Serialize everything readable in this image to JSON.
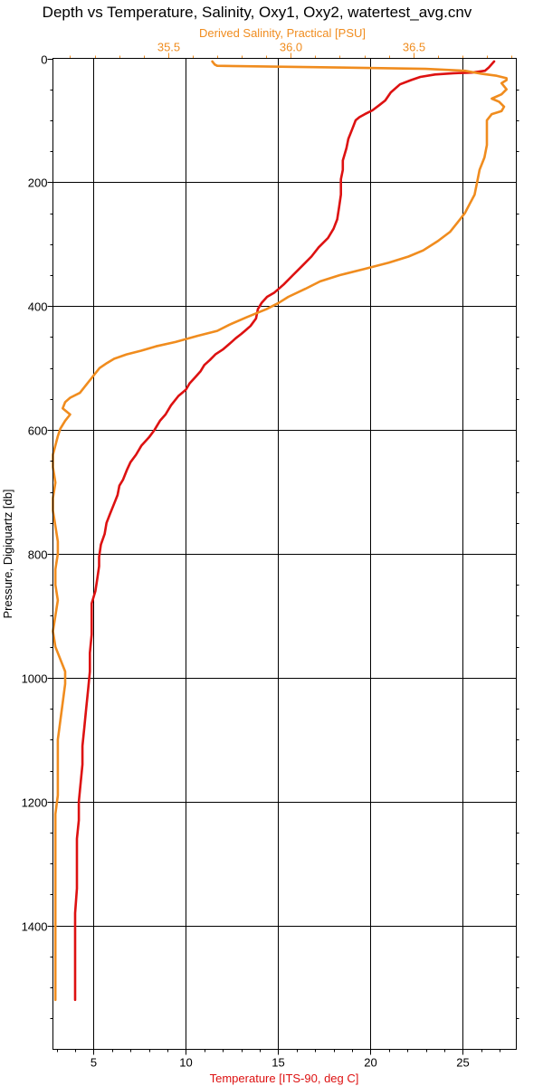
{
  "chart_data": {
    "type": "line",
    "title": "Depth vs Temperature, Salinity, Oxy1, Oxy2, watertest_avg.cnv",
    "y_axis": {
      "label": "Pressure, Digiquartz [db]",
      "range": [
        0,
        1600
      ],
      "inverted": true,
      "ticks": [
        0,
        200,
        400,
        600,
        800,
        1000,
        1200,
        1400
      ],
      "color": "#000000"
    },
    "x_axis_bottom": {
      "label": "Temperature [ITS-90, deg C]",
      "range": [
        2.8,
        27.9
      ],
      "ticks": [
        5,
        10,
        15,
        20,
        25
      ],
      "color": "#dd1111"
    },
    "x_axis_top": {
      "label": "Derived Salinity, Practical [PSU]",
      "range": [
        35.03,
        36.92
      ],
      "ticks": [
        35.5,
        36.0,
        36.5
      ],
      "tick_labels": [
        "35.5",
        "36.0",
        "36.5"
      ],
      "color": "#f08c1e"
    },
    "grid": true,
    "series": [
      {
        "name": "Temperature [ITS-90, deg C]",
        "axis": "bottom",
        "color": "#dd1111",
        "points": [
          [
            26.7,
            5
          ],
          [
            26.4,
            15
          ],
          [
            26.2,
            20
          ],
          [
            25.5,
            23
          ],
          [
            24.5,
            24
          ],
          [
            23.5,
            26
          ],
          [
            22.7,
            30
          ],
          [
            22.2,
            35
          ],
          [
            21.6,
            42
          ],
          [
            21.1,
            55
          ],
          [
            20.8,
            68
          ],
          [
            20.5,
            75
          ],
          [
            20.1,
            84
          ],
          [
            19.7,
            90
          ],
          [
            19.4,
            95
          ],
          [
            19.2,
            100
          ],
          [
            19.0,
            115
          ],
          [
            18.8,
            130
          ],
          [
            18.7,
            145
          ],
          [
            18.5,
            165
          ],
          [
            18.5,
            180
          ],
          [
            18.4,
            195
          ],
          [
            18.4,
            220
          ],
          [
            18.3,
            240
          ],
          [
            18.2,
            260
          ],
          [
            18.0,
            275
          ],
          [
            17.7,
            290
          ],
          [
            17.2,
            305
          ],
          [
            16.8,
            320
          ],
          [
            16.3,
            335
          ],
          [
            15.8,
            350
          ],
          [
            15.3,
            365
          ],
          [
            14.8,
            378
          ],
          [
            14.4,
            385
          ],
          [
            14.1,
            395
          ],
          [
            13.9,
            405
          ],
          [
            13.8,
            420
          ],
          [
            13.5,
            432
          ],
          [
            13.2,
            440
          ],
          [
            13.0,
            445
          ],
          [
            12.7,
            452
          ],
          [
            12.4,
            460
          ],
          [
            12.0,
            470
          ],
          [
            11.6,
            478
          ],
          [
            11.3,
            487
          ],
          [
            11.0,
            495
          ],
          [
            10.8,
            505
          ],
          [
            10.5,
            515
          ],
          [
            10.2,
            525
          ],
          [
            10.0,
            535
          ],
          [
            9.6,
            545
          ],
          [
            9.2,
            560
          ],
          [
            8.9,
            575
          ],
          [
            8.6,
            585
          ],
          [
            8.3,
            600
          ],
          [
            8.0,
            612
          ],
          [
            7.6,
            625
          ],
          [
            7.3,
            640
          ],
          [
            7.0,
            652
          ],
          [
            6.8,
            665
          ],
          [
            6.6,
            680
          ],
          [
            6.4,
            690
          ],
          [
            6.3,
            705
          ],
          [
            6.1,
            720
          ],
          [
            5.9,
            735
          ],
          [
            5.7,
            750
          ],
          [
            5.6,
            768
          ],
          [
            5.4,
            785
          ],
          [
            5.3,
            805
          ],
          [
            5.3,
            820
          ],
          [
            5.2,
            840
          ],
          [
            5.1,
            860
          ],
          [
            4.9,
            880
          ],
          [
            4.9,
            900
          ],
          [
            4.9,
            930
          ],
          [
            4.8,
            960
          ],
          [
            4.8,
            990
          ],
          [
            4.7,
            1020
          ],
          [
            4.6,
            1050
          ],
          [
            4.5,
            1080
          ],
          [
            4.4,
            1110
          ],
          [
            4.4,
            1140
          ],
          [
            4.3,
            1170
          ],
          [
            4.2,
            1200
          ],
          [
            4.2,
            1230
          ],
          [
            4.1,
            1260
          ],
          [
            4.1,
            1300
          ],
          [
            4.1,
            1340
          ],
          [
            4.0,
            1380
          ],
          [
            4.0,
            1420
          ],
          [
            4.0,
            1460
          ],
          [
            4.0,
            1490
          ],
          [
            4.0,
            1520
          ]
        ]
      },
      {
        "name": "Derived Salinity, Practical [PSU]",
        "axis": "top",
        "color": "#f08c1e",
        "points": [
          [
            35.68,
            5
          ],
          [
            35.69,
            10
          ],
          [
            35.7,
            12
          ],
          [
            36.25,
            15
          ],
          [
            36.55,
            17
          ],
          [
            36.71,
            20
          ],
          [
            36.78,
            25
          ],
          [
            36.84,
            28
          ],
          [
            36.88,
            32
          ],
          [
            36.88,
            35
          ],
          [
            36.86,
            40
          ],
          [
            36.87,
            45
          ],
          [
            36.88,
            50
          ],
          [
            36.86,
            58
          ],
          [
            36.82,
            65
          ],
          [
            36.85,
            70
          ],
          [
            36.87,
            78
          ],
          [
            36.86,
            85
          ],
          [
            36.82,
            90
          ],
          [
            36.8,
            100
          ],
          [
            36.8,
            120
          ],
          [
            36.8,
            140
          ],
          [
            36.79,
            160
          ],
          [
            36.77,
            180
          ],
          [
            36.76,
            200
          ],
          [
            36.75,
            220
          ],
          [
            36.73,
            235
          ],
          [
            36.71,
            250
          ],
          [
            36.68,
            265
          ],
          [
            36.65,
            280
          ],
          [
            36.6,
            295
          ],
          [
            36.54,
            310
          ],
          [
            36.48,
            320
          ],
          [
            36.4,
            330
          ],
          [
            36.3,
            340
          ],
          [
            36.2,
            350
          ],
          [
            36.12,
            360
          ],
          [
            36.06,
            372
          ],
          [
            35.99,
            385
          ],
          [
            35.95,
            395
          ],
          [
            35.9,
            405
          ],
          [
            35.82,
            418
          ],
          [
            35.75,
            430
          ],
          [
            35.7,
            440
          ],
          [
            35.62,
            448
          ],
          [
            35.53,
            458
          ],
          [
            35.45,
            465
          ],
          [
            35.39,
            472
          ],
          [
            35.33,
            478
          ],
          [
            35.28,
            485
          ],
          [
            35.25,
            492
          ],
          [
            35.22,
            500
          ],
          [
            35.2,
            510
          ],
          [
            35.17,
            525
          ],
          [
            35.14,
            540
          ],
          [
            35.1,
            548
          ],
          [
            35.08,
            555
          ],
          [
            35.07,
            565
          ],
          [
            35.1,
            575
          ],
          [
            35.08,
            585
          ],
          [
            35.06,
            598
          ],
          [
            35.05,
            610
          ],
          [
            35.04,
            625
          ],
          [
            35.03,
            640
          ],
          [
            35.03,
            660
          ],
          [
            35.04,
            685
          ],
          [
            35.03,
            710
          ],
          [
            35.03,
            730
          ],
          [
            35.04,
            755
          ],
          [
            35.05,
            780
          ],
          [
            35.05,
            800
          ],
          [
            35.04,
            825
          ],
          [
            35.04,
            850
          ],
          [
            35.05,
            875
          ],
          [
            35.04,
            900
          ],
          [
            35.03,
            925
          ],
          [
            35.04,
            950
          ],
          [
            35.06,
            970
          ],
          [
            35.08,
            990
          ],
          [
            35.08,
            1010
          ],
          [
            35.07,
            1040
          ],
          [
            35.06,
            1070
          ],
          [
            35.05,
            1100
          ],
          [
            35.05,
            1130
          ],
          [
            35.05,
            1160
          ],
          [
            35.05,
            1190
          ],
          [
            35.04,
            1220
          ],
          [
            35.04,
            1260
          ],
          [
            35.04,
            1300
          ],
          [
            35.04,
            1350
          ],
          [
            35.04,
            1400
          ],
          [
            35.04,
            1450
          ],
          [
            35.04,
            1490
          ],
          [
            35.04,
            1520
          ]
        ]
      }
    ]
  }
}
